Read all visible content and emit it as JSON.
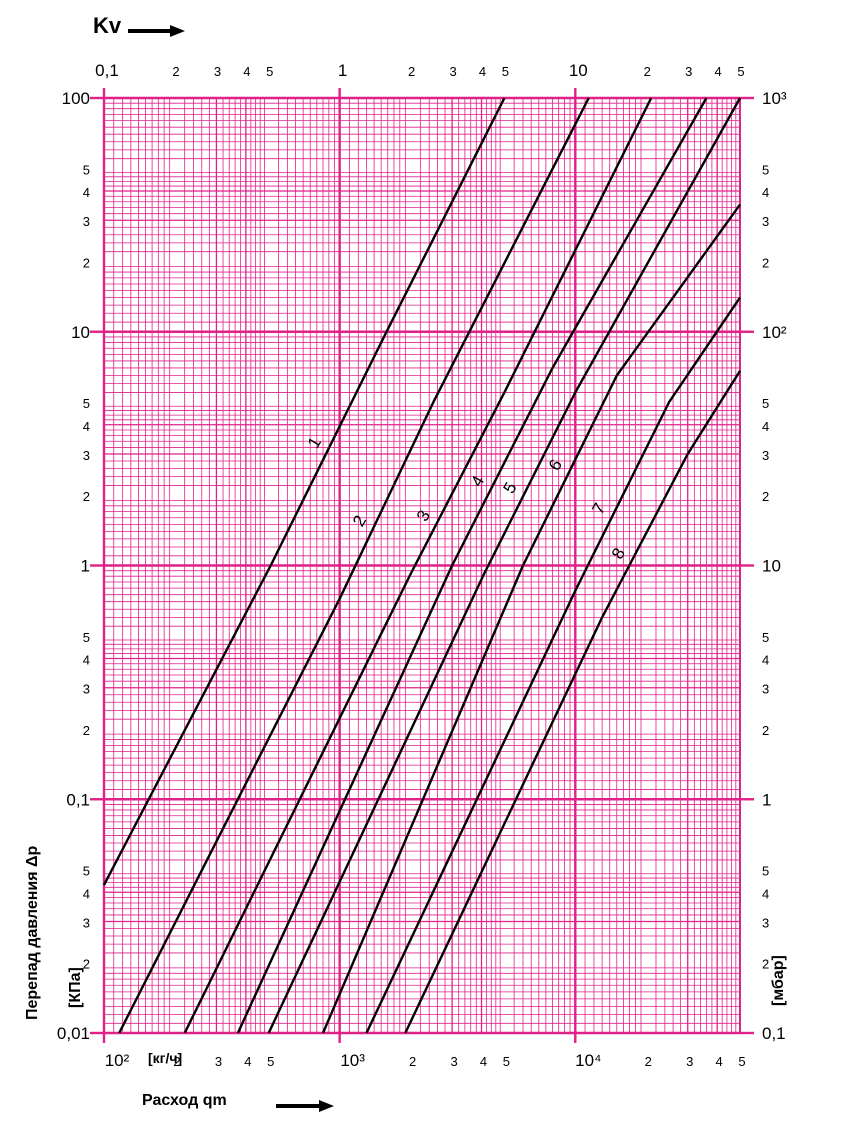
{
  "colors": {
    "grid": "#e0218a",
    "curve": "#000000",
    "background": "#ffffff"
  },
  "chart_data": {
    "type": "line",
    "scale": "log-log",
    "top_axis_label": "Kv",
    "bottom_axis_label": "Расход qm",
    "bottom_unit": "[кг/ч]",
    "left_axis_label": "Перепад давления Δp",
    "left_unit": "[КПа]",
    "right_unit": "[мбар]",
    "xlim": [
      100,
      50000
    ],
    "ylim": [
      0.01,
      100
    ],
    "kv_range": [
      0.1,
      50
    ],
    "bottom_ticks": [
      {
        "v": 100,
        "t": "10²",
        "major": true
      },
      {
        "v": 200,
        "t": "2"
      },
      {
        "v": 300,
        "t": "3"
      },
      {
        "v": 400,
        "t": "4"
      },
      {
        "v": 500,
        "t": "5"
      },
      {
        "v": 1000,
        "t": "10³",
        "major": true
      },
      {
        "v": 2000,
        "t": "2"
      },
      {
        "v": 3000,
        "t": "3"
      },
      {
        "v": 4000,
        "t": "4"
      },
      {
        "v": 5000,
        "t": "5"
      },
      {
        "v": 10000,
        "t": "10⁴",
        "major": true
      },
      {
        "v": 20000,
        "t": "2"
      },
      {
        "v": 30000,
        "t": "3"
      },
      {
        "v": 40000,
        "t": "4"
      },
      {
        "v": 50000,
        "t": "5"
      }
    ],
    "top_ticks": [
      {
        "v": 0.1,
        "t": "0,1",
        "major": true
      },
      {
        "v": 0.2,
        "t": "2"
      },
      {
        "v": 0.3,
        "t": "3"
      },
      {
        "v": 0.4,
        "t": "4"
      },
      {
        "v": 0.5,
        "t": "5"
      },
      {
        "v": 1,
        "t": "1",
        "major": true
      },
      {
        "v": 2,
        "t": "2"
      },
      {
        "v": 3,
        "t": "3"
      },
      {
        "v": 4,
        "t": "4"
      },
      {
        "v": 5,
        "t": "5"
      },
      {
        "v": 10,
        "t": "10",
        "major": true
      },
      {
        "v": 20,
        "t": "2"
      },
      {
        "v": 30,
        "t": "3"
      },
      {
        "v": 40,
        "t": "4"
      },
      {
        "v": 50,
        "t": "5"
      }
    ],
    "left_ticks": [
      {
        "v": 100,
        "t": "100",
        "major": true
      },
      {
        "v": 50,
        "t": "5"
      },
      {
        "v": 40,
        "t": "4"
      },
      {
        "v": 30,
        "t": "3"
      },
      {
        "v": 20,
        "t": "2"
      },
      {
        "v": 10,
        "t": "10",
        "major": true
      },
      {
        "v": 5,
        "t": "5"
      },
      {
        "v": 4,
        "t": "4"
      },
      {
        "v": 3,
        "t": "3"
      },
      {
        "v": 2,
        "t": "2"
      },
      {
        "v": 1,
        "t": "1",
        "major": true
      },
      {
        "v": 0.5,
        "t": "5"
      },
      {
        "v": 0.4,
        "t": "4"
      },
      {
        "v": 0.3,
        "t": "3"
      },
      {
        "v": 0.2,
        "t": "2"
      },
      {
        "v": 0.1,
        "t": "0,1",
        "major": true
      },
      {
        "v": 0.05,
        "t": "5"
      },
      {
        "v": 0.04,
        "t": "4"
      },
      {
        "v": 0.03,
        "t": "3"
      },
      {
        "v": 0.02,
        "t": "2"
      },
      {
        "v": 0.01,
        "t": "0,01",
        "major": true
      }
    ],
    "right_ticks": [
      {
        "v": 1000,
        "t": "10³",
        "major": true
      },
      {
        "v": 500,
        "t": "5"
      },
      {
        "v": 400,
        "t": "4"
      },
      {
        "v": 300,
        "t": "3"
      },
      {
        "v": 200,
        "t": "2"
      },
      {
        "v": 100,
        "t": "10²",
        "major": true
      },
      {
        "v": 50,
        "t": "5"
      },
      {
        "v": 40,
        "t": "4"
      },
      {
        "v": 30,
        "t": "3"
      },
      {
        "v": 20,
        "t": "2"
      },
      {
        "v": 10,
        "t": "10",
        "major": true
      },
      {
        "v": 5,
        "t": "5"
      },
      {
        "v": 4,
        "t": "4"
      },
      {
        "v": 3,
        "t": "3"
      },
      {
        "v": 2,
        "t": "2"
      },
      {
        "v": 1,
        "t": "1",
        "major": true
      },
      {
        "v": 0.5,
        "t": "5"
      },
      {
        "v": 0.4,
        "t": "4"
      },
      {
        "v": 0.3,
        "t": "3"
      },
      {
        "v": 0.2,
        "t": "2"
      },
      {
        "v": 0.1,
        "t": "0,1",
        "major": true
      }
    ],
    "series": [
      {
        "name": "1",
        "points": [
          [
            100,
            0.043
          ],
          [
            510,
            1
          ],
          [
            1580,
            10
          ],
          [
            5000,
            100
          ]
        ],
        "label_at": 0.57
      },
      {
        "name": "2",
        "points": [
          [
            116,
            0.01
          ],
          [
            1000,
            0.72
          ],
          [
            2500,
            5
          ],
          [
            11400,
            100
          ]
        ],
        "label_at": 0.55
      },
      {
        "name": "3",
        "points": [
          [
            220,
            0.01
          ],
          [
            2000,
            0.92
          ],
          [
            5000,
            5.5
          ],
          [
            21000,
            100
          ]
        ],
        "label_at": 0.55
      },
      {
        "name": "4",
        "points": [
          [
            370,
            0.01
          ],
          [
            3000,
            1
          ],
          [
            8000,
            7
          ],
          [
            36000,
            100
          ]
        ],
        "label_at": 0.55
      },
      {
        "name": "5",
        "points": [
          [
            500,
            0.01
          ],
          [
            4100,
            0.92
          ],
          [
            10000,
            5.5
          ],
          [
            50000,
            100
          ]
        ],
        "label_at": 0.55
      },
      {
        "name": "6",
        "points": [
          [
            850,
            0.01
          ],
          [
            6000,
            1
          ],
          [
            15000,
            6.5
          ],
          [
            50000,
            35
          ]
        ],
        "label_at": 0.6
      },
      {
        "name": "7",
        "points": [
          [
            1300,
            0.01
          ],
          [
            10000,
            0.78
          ],
          [
            25000,
            5
          ],
          [
            50000,
            14
          ]
        ],
        "label_at": 0.67
      },
      {
        "name": "8",
        "points": [
          [
            1900,
            0.01
          ],
          [
            13000,
            0.6
          ],
          [
            30000,
            3
          ],
          [
            50000,
            6.8
          ]
        ],
        "label_at": 0.69
      }
    ]
  }
}
